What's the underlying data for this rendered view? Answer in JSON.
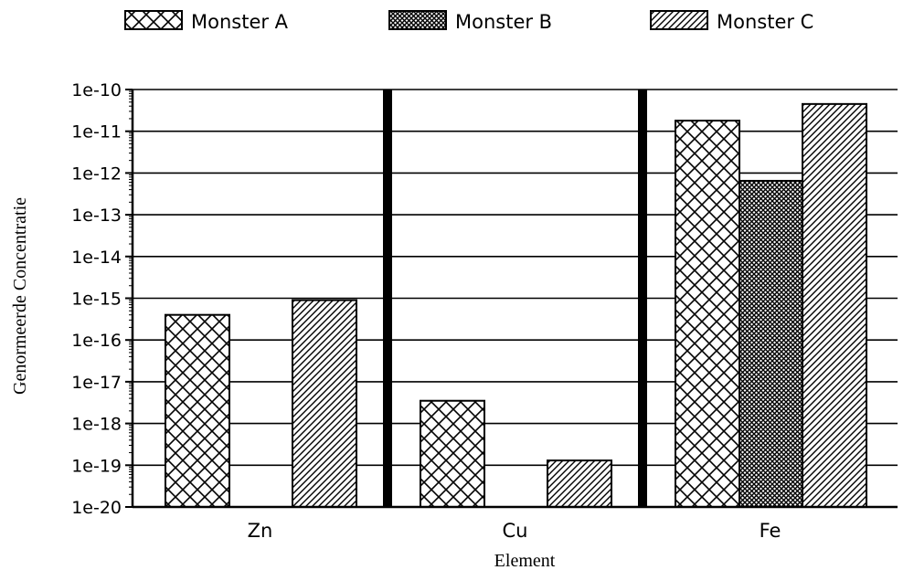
{
  "chart_data": {
    "type": "bar",
    "title": "",
    "xlabel": "Element",
    "ylabel": "Genormeerde Concentratie",
    "y_scale": "log",
    "ylim": [
      1e-20,
      1e-10
    ],
    "y_ticks": [
      "1e-10",
      "1e-11",
      "1e-12",
      "1e-13",
      "1e-14",
      "1e-15",
      "1e-16",
      "1e-17",
      "1e-18",
      "1e-19",
      "1e-20"
    ],
    "grid": true,
    "legend_position": "top",
    "categories": [
      "Zn",
      "Cu",
      "Fe"
    ],
    "series": [
      {
        "name": "Monster A",
        "pattern": "crosshatch",
        "values": [
          4e-16,
          3.5e-18,
          1.8e-11
        ]
      },
      {
        "name": "Monster B",
        "pattern": "dense-dots",
        "values": [
          null,
          null,
          6.5e-13
        ]
      },
      {
        "name": "Monster C",
        "pattern": "diagonal",
        "values": [
          9e-16,
          1.3e-19,
          4.5e-11
        ]
      }
    ]
  }
}
